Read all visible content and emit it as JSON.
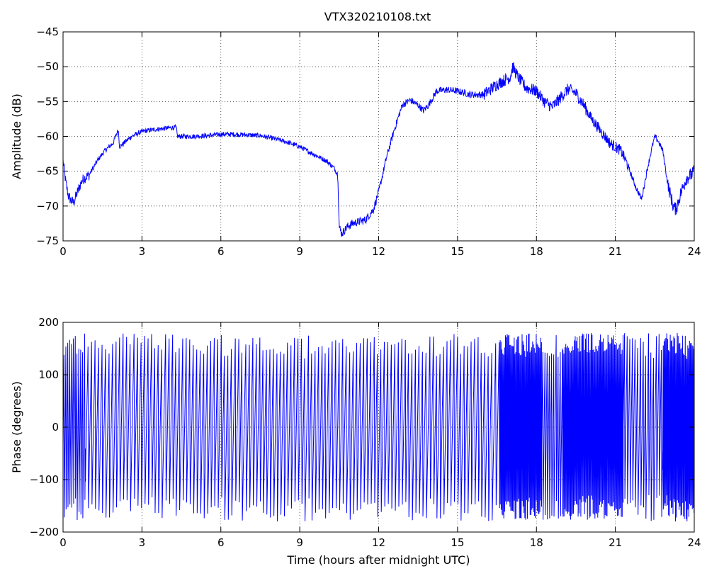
{
  "title": "VTX320210108.txt",
  "chart_data": [
    {
      "type": "line",
      "title": "VTX320210108.txt",
      "xlabel": "",
      "ylabel": "Amplitude (dB)",
      "xlim": [
        0,
        24
      ],
      "ylim": [
        -75,
        -45
      ],
      "xticks": [
        0,
        3,
        6,
        9,
        12,
        15,
        18,
        21,
        24
      ],
      "yticks": [
        -75,
        -70,
        -65,
        -60,
        -55,
        -50,
        -45
      ],
      "xtick_labels": [
        "0",
        "3",
        "6",
        "9",
        "12",
        "15",
        "18",
        "21",
        "24"
      ],
      "ytick_labels": [
        "−75",
        "−70",
        "−65",
        "−60",
        "−55",
        "−50",
        "−45"
      ],
      "grid": true,
      "line_color": "#0000ff",
      "series": [
        {
          "x": [
            0,
            0.1,
            0.2,
            0.3,
            0.4,
            0.5,
            0.6,
            0.7,
            0.8,
            1.0,
            1.3,
            1.6,
            1.9,
            2.1,
            2.15,
            2.3,
            2.6,
            3.0,
            3.5,
            4.0,
            4.3,
            4.35,
            4.6,
            5.0,
            5.5,
            6.0,
            6.5,
            7.0,
            7.5,
            8.0,
            8.5,
            9.0,
            9.5,
            10.0,
            10.3,
            10.45,
            10.5,
            10.6,
            10.8,
            11.0,
            11.5,
            11.8,
            12.0,
            12.3,
            12.6,
            12.9,
            13.2,
            13.5,
            13.7,
            13.9,
            14.2,
            14.6,
            15.0,
            15.5,
            16.0,
            16.5,
            17.0,
            17.1,
            17.3,
            17.6,
            18.0,
            18.3,
            18.6,
            18.9,
            19.2,
            19.5,
            19.8,
            20.1,
            20.5,
            20.8,
            21.0,
            21.2,
            21.4,
            21.6,
            21.8,
            22.0,
            22.2,
            22.4,
            22.5,
            22.6,
            22.8,
            23.0,
            23.2,
            23.3,
            23.5,
            23.7,
            23.9,
            24.0
          ],
          "values": [
            -63.5,
            -66.5,
            -68.5,
            -69.2,
            -69.5,
            -68.5,
            -67.5,
            -66.5,
            -66.0,
            -65.5,
            -63.5,
            -62.0,
            -61.0,
            -59.0,
            -61.5,
            -61.0,
            -60.0,
            -59.3,
            -59.0,
            -58.8,
            -58.7,
            -60.0,
            -60.0,
            -60.0,
            -59.9,
            -59.7,
            -59.7,
            -59.8,
            -59.9,
            -60.3,
            -60.8,
            -61.5,
            -62.5,
            -63.5,
            -64.5,
            -65.5,
            -73.0,
            -74.0,
            -73.0,
            -72.5,
            -72.0,
            -70.5,
            -68.0,
            -63.0,
            -59.0,
            -55.5,
            -54.8,
            -55.5,
            -56.3,
            -55.5,
            -53.5,
            -53.3,
            -53.5,
            -54.0,
            -54.0,
            -52.5,
            -51.5,
            -50.0,
            -51.5,
            -53.0,
            -53.5,
            -55.0,
            -55.8,
            -54.5,
            -53.2,
            -53.8,
            -55.5,
            -57.5,
            -59.5,
            -61.0,
            -61.5,
            -62.0,
            -63.5,
            -65.5,
            -67.5,
            -69.0,
            -65.0,
            -61.5,
            -60.0,
            -60.5,
            -62.0,
            -67.0,
            -70.0,
            -70.5,
            -68.0,
            -66.0,
            -65.5,
            -65.0
          ]
        }
      ]
    },
    {
      "type": "line",
      "title": "",
      "xlabel": "Time (hours after midnight UTC)",
      "ylabel": "Phase (degrees)",
      "xlim": [
        0,
        24
      ],
      "ylim": [
        -200,
        200
      ],
      "xticks": [
        0,
        3,
        6,
        9,
        12,
        15,
        18,
        21,
        24
      ],
      "yticks": [
        -200,
        -100,
        0,
        100,
        200
      ],
      "xtick_labels": [
        "0",
        "3",
        "6",
        "9",
        "12",
        "15",
        "18",
        "21",
        "24"
      ],
      "ytick_labels": [
        "−200",
        "−100",
        "0",
        "100",
        "200"
      ],
      "grid": true,
      "line_color": "#0000ff",
      "series": [
        {
          "description_of_shape": "",
          "wrap_range": [
            -180,
            180
          ],
          "segments": [
            {
              "x": [
                0,
                0.85
              ],
              "cycles_per_hour": 14
            },
            {
              "x": [
                0.85,
                16.6
              ],
              "cycles_per_hour": 7.5
            },
            {
              "x": [
                16.6,
                18.2
              ],
              "cycles_per_hour": 30
            },
            {
              "x": [
                18.2,
                19.0
              ],
              "cycles_per_hour": 12
            },
            {
              "x": [
                19.0,
                21.3
              ],
              "cycles_per_hour": 28
            },
            {
              "x": [
                21.3,
                22.8
              ],
              "cycles_per_hour": 10
            },
            {
              "x": [
                22.8,
                24.0
              ],
              "cycles_per_hour": 30
            }
          ]
        }
      ]
    }
  ]
}
